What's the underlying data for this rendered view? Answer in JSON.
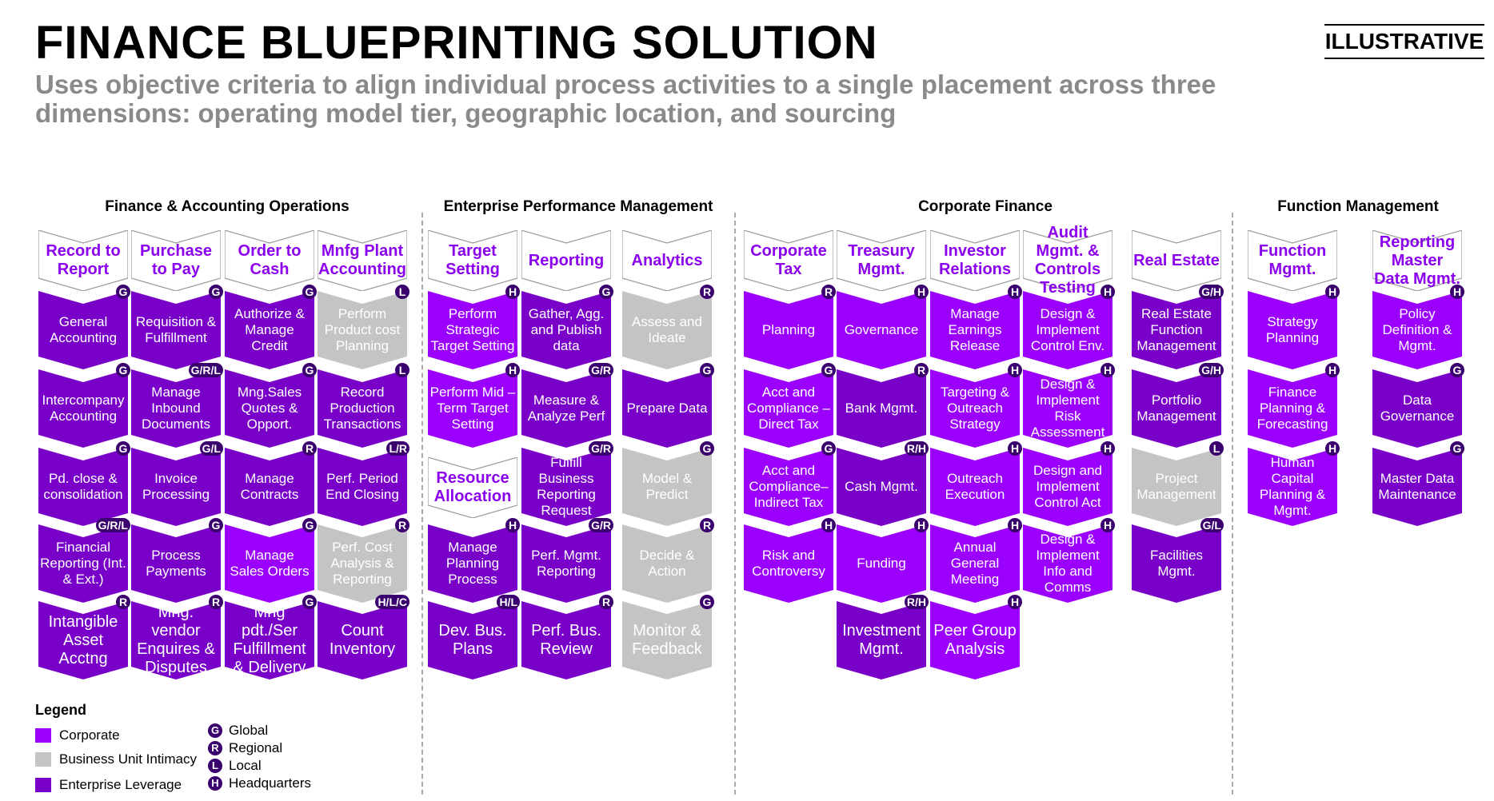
{
  "title": "FINANCE BLUEPRINTING SOLUTION",
  "subtitle": "Uses objective criteria to align individual process activities to a single placement across three dimensions: operating model tier, geographic location, and sourcing",
  "tag": "ILLUSTRATIVE",
  "colors": {
    "corporate": "#9b00ff",
    "bui": "#c4c4c4",
    "enterprise": "#7800c8",
    "header_text": "#8b00ee",
    "badge": "#3a006e"
  },
  "sections": [
    {
      "title": "Finance & Accounting Operations"
    },
    {
      "title": "Enterprise Performance Management"
    },
    {
      "title": "Corporate Finance"
    },
    {
      "title": "Function Management"
    }
  ],
  "columns": [
    {
      "header": "Record to Report",
      "cells": [
        {
          "label": "General Accounting",
          "badge": "G",
          "fill": "enterprise"
        },
        {
          "label": "Intercompany Accounting",
          "badge": "G",
          "fill": "enterprise"
        },
        {
          "label": "Pd. close & consolidation",
          "badge": "G",
          "fill": "enterprise"
        },
        {
          "label": "Financial Reporting (Int. & Ext.)",
          "badge": "G/R/L",
          "fill": "enterprise"
        },
        {
          "label": "Intangible Asset Acctng",
          "badge": "R",
          "fill": "enterprise"
        }
      ]
    },
    {
      "header": "Purchase to Pay",
      "cells": [
        {
          "label": "Requisition & Fulfillment",
          "badge": "G",
          "fill": "enterprise"
        },
        {
          "label": "Manage Inbound Documents",
          "badge": "G/R/L",
          "fill": "enterprise"
        },
        {
          "label": "Invoice Processing",
          "badge": "G/L",
          "fill": "enterprise"
        },
        {
          "label": "Process Payments",
          "badge": "G",
          "fill": "enterprise"
        },
        {
          "label": "Mng. vendor Enquires & Disputes",
          "badge": "R",
          "fill": "enterprise"
        }
      ]
    },
    {
      "header": "Order to Cash",
      "cells": [
        {
          "label": "Authorize & Manage Credit",
          "badge": "G",
          "fill": "enterprise"
        },
        {
          "label": "Mng.Sales Quotes & Opport.",
          "badge": "G",
          "fill": "enterprise"
        },
        {
          "label": "Manage Contracts",
          "badge": "R",
          "fill": "enterprise"
        },
        {
          "label": "Manage Sales Orders",
          "badge": "G",
          "fill": "corporate"
        },
        {
          "label": "Mng pdt./Ser Fulfillment & Delivery",
          "badge": "G",
          "fill": "enterprise"
        }
      ]
    },
    {
      "header": "Mnfg Plant Accounting",
      "cells": [
        {
          "label": "Perform Product cost Planning",
          "badge": "L",
          "fill": "bui"
        },
        {
          "label": "Record Production Transactions",
          "badge": "L",
          "fill": "enterprise"
        },
        {
          "label": "Perf. Period End Closing",
          "badge": "L/R",
          "fill": "enterprise"
        },
        {
          "label": "Perf. Cost Analysis & Reporting",
          "badge": "R",
          "fill": "bui"
        },
        {
          "label": "Count Inventory",
          "badge": "H/L/C",
          "fill": "enterprise"
        }
      ]
    },
    {
      "header": "Target Setting",
      "cells": [
        {
          "label": "Perform Strategic Target Setting",
          "badge": "H",
          "fill": "corporate"
        },
        {
          "label": "Perform Mid – Term Target Setting",
          "badge": "H",
          "fill": "corporate"
        },
        {
          "label": "Resource Allocation",
          "badge": "",
          "fill": "header"
        },
        {
          "label": "Manage Planning Process",
          "badge": "H",
          "fill": "enterprise"
        },
        {
          "label": "Dev. Bus. Plans",
          "badge": "H/L",
          "fill": "enterprise"
        }
      ]
    },
    {
      "header": "Reporting",
      "cells": [
        {
          "label": "Gather, Agg. and Publish data",
          "badge": "G",
          "fill": "enterprise"
        },
        {
          "label": "Measure & Analyze Perf",
          "badge": "G/R",
          "fill": "enterprise"
        },
        {
          "label": "Fulfill Business Reporting Request",
          "badge": "G/R",
          "fill": "enterprise"
        },
        {
          "label": "Perf. Mgmt. Reporting",
          "badge": "G/R",
          "fill": "enterprise"
        },
        {
          "label": "Perf. Bus. Review",
          "badge": "R",
          "fill": "enterprise"
        }
      ]
    },
    {
      "header": "Analytics",
      "cells": [
        {
          "label": "Assess and Ideate",
          "badge": "R",
          "fill": "bui"
        },
        {
          "label": "Prepare Data",
          "badge": "G",
          "fill": "enterprise"
        },
        {
          "label": "Model & Predict",
          "badge": "G",
          "fill": "bui"
        },
        {
          "label": "Decide & Action",
          "badge": "R",
          "fill": "bui"
        },
        {
          "label": "Monitor & Feedback",
          "badge": "G",
          "fill": "bui"
        }
      ]
    },
    {
      "header": "Corporate Tax",
      "cells": [
        {
          "label": "Planning",
          "badge": "R",
          "fill": "corporate"
        },
        {
          "label": "Acct and Compliance – Direct Tax",
          "badge": "G",
          "fill": "corporate"
        },
        {
          "label": "Acct and Compliance– Indirect Tax",
          "badge": "G",
          "fill": "corporate"
        },
        {
          "label": "Risk and Controversy",
          "badge": "H",
          "fill": "corporate"
        }
      ]
    },
    {
      "header": "Treasury Mgmt.",
      "cells": [
        {
          "label": "Governance",
          "badge": "H",
          "fill": "corporate"
        },
        {
          "label": "Bank Mgmt.",
          "badge": "R",
          "fill": "enterprise"
        },
        {
          "label": "Cash Mgmt.",
          "badge": "R/H",
          "fill": "enterprise"
        },
        {
          "label": "Funding",
          "badge": "H",
          "fill": "corporate"
        },
        {
          "label": "Investment Mgmt.",
          "badge": "R/H",
          "fill": "enterprise"
        }
      ]
    },
    {
      "header": "Investor Relations",
      "cells": [
        {
          "label": "Manage Earnings Release",
          "badge": "H",
          "fill": "corporate"
        },
        {
          "label": "Targeting & Outreach Strategy",
          "badge": "H",
          "fill": "corporate"
        },
        {
          "label": "Outreach Execution",
          "badge": "H",
          "fill": "corporate"
        },
        {
          "label": "Annual General Meeting",
          "badge": "H",
          "fill": "corporate"
        },
        {
          "label": "Peer Group Analysis",
          "badge": "H",
          "fill": "corporate"
        }
      ]
    },
    {
      "header": "Audit Mgmt. & Controls Testing",
      "cells": [
        {
          "label": "Design & Implement Control Env.",
          "badge": "H",
          "fill": "corporate"
        },
        {
          "label": "Design & Implement Risk Assessment",
          "badge": "H",
          "fill": "corporate"
        },
        {
          "label": "Design and Implement Control Act",
          "badge": "H",
          "fill": "corporate"
        },
        {
          "label": "Design & Implement Info and Comms",
          "badge": "H",
          "fill": "corporate"
        }
      ]
    },
    {
      "header": "Real Estate",
      "cells": [
        {
          "label": "Real Estate Function Management",
          "badge": "G/H",
          "fill": "enterprise"
        },
        {
          "label": "Portfolio Management",
          "badge": "G/H",
          "fill": "enterprise"
        },
        {
          "label": "Project Management",
          "badge": "L",
          "fill": "bui"
        },
        {
          "label": "Facilities Mgmt.",
          "badge": "G/L",
          "fill": "enterprise"
        }
      ]
    },
    {
      "header": "Function Mgmt.",
      "cells": [
        {
          "label": "Strategy Planning",
          "badge": "H",
          "fill": "corporate"
        },
        {
          "label": "Finance Planning & Forecasting",
          "badge": "H",
          "fill": "corporate"
        },
        {
          "label": "Human Capital Planning & Mgmt.",
          "badge": "H",
          "fill": "corporate"
        }
      ]
    },
    {
      "header": "Reporting Master Data Mgmt.",
      "cells": [
        {
          "label": "Policy Definition & Mgmt.",
          "badge": "H",
          "fill": "corporate"
        },
        {
          "label": "Data Governance",
          "badge": "G",
          "fill": "enterprise"
        },
        {
          "label": "Master Data Maintenance",
          "badge": "G",
          "fill": "enterprise"
        }
      ]
    }
  ],
  "legend": {
    "title": "Legend",
    "fills": [
      {
        "label": "Corporate",
        "color": "#9b00ff"
      },
      {
        "label": "Business Unit Intimacy",
        "color": "#c4c4c4"
      },
      {
        "label": "Enterprise Leverage",
        "color": "#7800c8"
      }
    ],
    "markers": [
      {
        "letter": "G",
        "label": "Global"
      },
      {
        "letter": "R",
        "label": "Regional"
      },
      {
        "letter": "L",
        "label": "Local"
      },
      {
        "letter": "H",
        "label": "Headquarters"
      }
    ]
  }
}
